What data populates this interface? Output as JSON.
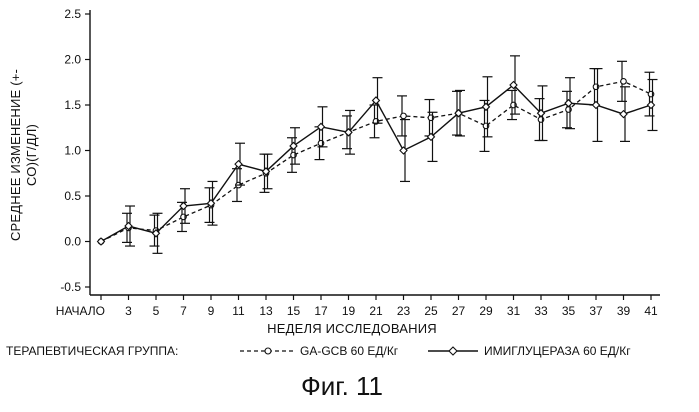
{
  "chart_data": {
    "type": "line",
    "ylabel_line1": "СРЕДНЕЕ ИЗМЕНЕНИЕ (+-",
    "ylabel_line2": "СО)(Г/ДЛ)",
    "xlabel": "НЕДЕЛЯ ИССЛЕДОВАНИЯ",
    "ylim": [
      -0.5,
      2.5
    ],
    "yticks": [
      "2.5",
      "2.0",
      "1.5",
      "1.0",
      "0.5",
      "0.0",
      "-0.5"
    ],
    "ytick_values": [
      2.5,
      2.0,
      1.5,
      1.0,
      0.5,
      0.0,
      -0.5
    ],
    "categories": [
      "НАЧАЛО",
      "3",
      "5",
      "7",
      "9",
      "11",
      "13",
      "15",
      "17",
      "19",
      "21",
      "23",
      "25",
      "27",
      "29",
      "31",
      "33",
      "35",
      "37",
      "39",
      "41"
    ],
    "legend_placement": "bottom",
    "legend_prefix": "ТЕРАПЕВТИЧЕСКАЯ ГРУППА:",
    "series": [
      {
        "name": "GA-GCB 60 ЕД/Кг",
        "style": "dashed-circle",
        "values": [
          0.0,
          0.15,
          0.12,
          0.27,
          0.4,
          0.62,
          0.75,
          0.95,
          1.08,
          1.2,
          1.32,
          1.38,
          1.36,
          1.41,
          1.27,
          1.5,
          1.34,
          1.45,
          1.7,
          1.76,
          1.62
        ],
        "errors": [
          0.0,
          0.16,
          0.17,
          0.16,
          0.19,
          0.18,
          0.21,
          0.19,
          0.18,
          0.18,
          0.18,
          0.22,
          0.2,
          0.24,
          0.28,
          0.16,
          0.23,
          0.2,
          0.2,
          0.22,
          0.24
        ]
      },
      {
        "name": "ИМИГЛУЦЕРАЗА 60 ЕД/Кг",
        "style": "solid-diamond",
        "values": [
          0.0,
          0.17,
          0.09,
          0.39,
          0.42,
          0.85,
          0.77,
          1.05,
          1.26,
          1.2,
          1.55,
          1.0,
          1.15,
          1.41,
          1.48,
          1.72,
          1.41,
          1.52,
          1.5,
          1.4,
          1.5
        ],
        "errors": [
          0.0,
          0.22,
          0.22,
          0.19,
          0.24,
          0.23,
          0.19,
          0.2,
          0.22,
          0.24,
          0.25,
          0.34,
          0.27,
          0.25,
          0.33,
          0.32,
          0.3,
          0.28,
          0.4,
          0.3,
          0.28
        ]
      }
    ]
  },
  "caption": "Фиг. 11"
}
